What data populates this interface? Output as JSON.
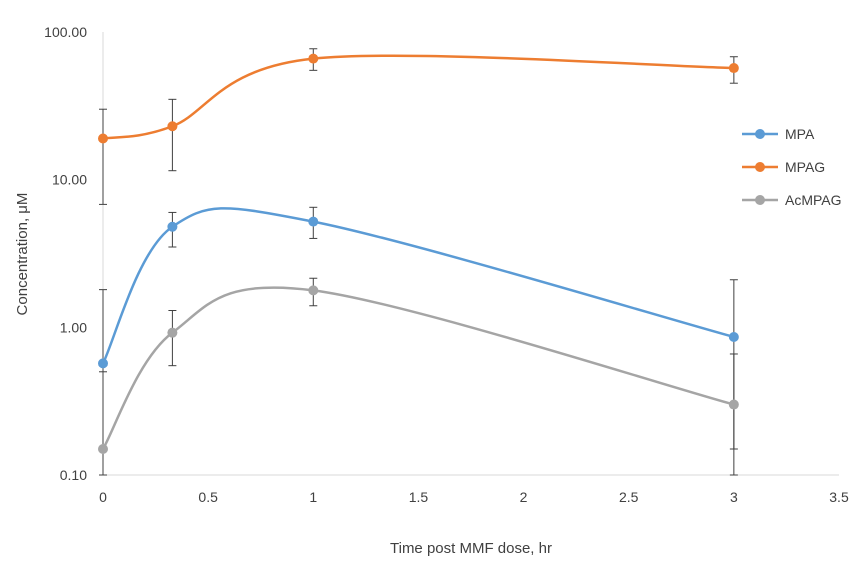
{
  "chart_data": {
    "type": "line",
    "y_scale": "log10",
    "title": "",
    "xlabel": "Time post MMF dose, hr",
    "ylabel": "Concentration, μM",
    "xlim": [
      0,
      3.5
    ],
    "ylim": [
      0.1,
      100
    ],
    "x_ticks": [
      0,
      0.5,
      1,
      1.5,
      2,
      2.5,
      3,
      3.5
    ],
    "x_tick_labels": [
      "0",
      "0.5",
      "1",
      "1.5",
      "2",
      "2.5",
      "3",
      "3.5"
    ],
    "y_ticks": [
      0.1,
      1,
      10,
      100
    ],
    "y_tick_labels": [
      "0.10",
      "1.00",
      "10.00",
      "100.00"
    ],
    "grid": false,
    "legend_position": "right",
    "smooth": true,
    "x": [
      0,
      0.33,
      1,
      3
    ],
    "series": [
      {
        "name": "MPA",
        "color": "#5b9bd5",
        "values": [
          0.57,
          4.8,
          5.2,
          0.86
        ],
        "err_low": [
          0.15,
          3.5,
          4.0,
          0.15
        ],
        "err_high": [
          1.8,
          6.0,
          6.5,
          2.1
        ]
      },
      {
        "name": "MPAG",
        "color": "#ed7d31",
        "values": [
          19,
          23,
          66,
          57
        ],
        "err_low": [
          6.8,
          11.5,
          55,
          45
        ],
        "err_high": [
          30,
          35,
          77,
          68
        ]
      },
      {
        "name": "AcMPAG",
        "color": "#a5a5a5",
        "values": [
          0.15,
          0.92,
          1.78,
          0.3
        ],
        "err_low": [
          0.1,
          0.55,
          1.4,
          0.1
        ],
        "err_high": [
          0.5,
          1.3,
          2.15,
          0.66
        ]
      }
    ]
  }
}
